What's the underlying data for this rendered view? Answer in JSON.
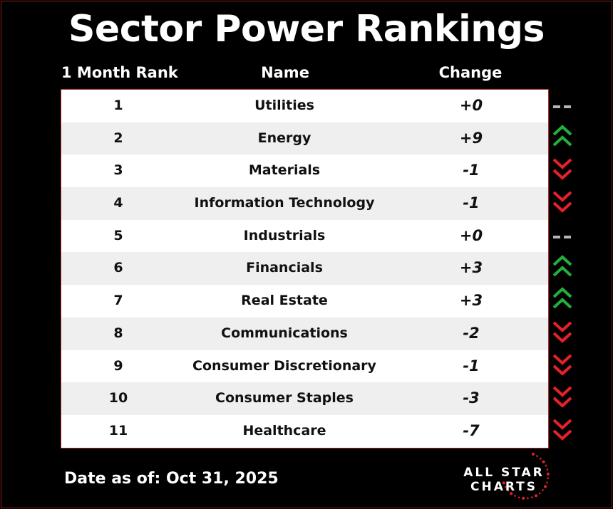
{
  "title": "Sector Power Rankings",
  "headers": {
    "rank": "1 Month Rank",
    "name": "Name",
    "change": "Change"
  },
  "rows": [
    {
      "rank": "1",
      "name": "Utilities",
      "change": "+0",
      "trend": "flat"
    },
    {
      "rank": "2",
      "name": "Energy",
      "change": "+9",
      "trend": "up"
    },
    {
      "rank": "3",
      "name": "Materials",
      "change": "-1",
      "trend": "down"
    },
    {
      "rank": "4",
      "name": "Information Technology",
      "change": "-1",
      "trend": "down"
    },
    {
      "rank": "5",
      "name": "Industrials",
      "change": "+0",
      "trend": "flat"
    },
    {
      "rank": "6",
      "name": "Financials",
      "change": "+3",
      "trend": "up"
    },
    {
      "rank": "7",
      "name": "Real Estate",
      "change": "+3",
      "trend": "up"
    },
    {
      "rank": "8",
      "name": "Communications",
      "change": "-2",
      "trend": "down"
    },
    {
      "rank": "9",
      "name": "Consumer Discretionary",
      "change": "-1",
      "trend": "down"
    },
    {
      "rank": "10",
      "name": "Consumer Staples",
      "change": "-3",
      "trend": "down"
    },
    {
      "rank": "11",
      "name": "Healthcare",
      "change": "-7",
      "trend": "down"
    }
  ],
  "footer": {
    "date": "Date as of: Oct 31, 2025"
  },
  "logo": {
    "line1": "ALL STAR",
    "line2": "CHARTS"
  },
  "colors": {
    "up": "#22b03a",
    "down": "#e8202a",
    "flat": "#b5b5b5",
    "border": "#b02a2a"
  }
}
